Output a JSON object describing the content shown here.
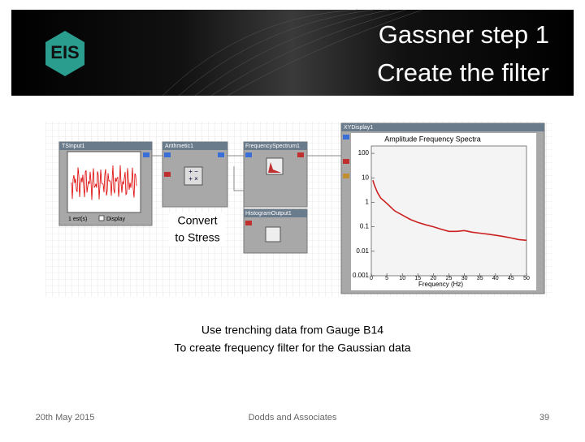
{
  "header": {
    "title_lines": [
      "Gassner step 1",
      "Create the filter"
    ]
  },
  "screenshot": {
    "modules": [
      {
        "label": "TSInput1"
      },
      {
        "label": "Arithmetic1"
      },
      {
        "label": "FrequencySpectrum1"
      },
      {
        "label": "HistogramOutput1"
      },
      {
        "label": "XYDisplay1"
      }
    ],
    "tsinput_status": "1 est(s)",
    "tsinput_checkbox": "Display",
    "arithmetic_symbols": "+ −\n+ ×",
    "convert_label": [
      "Convert",
      "to Stress"
    ],
    "spectrum": {
      "type": "line",
      "title": "Amplitude Frequency Spectra",
      "x_label": "Frequency (Hz)",
      "log_y": true,
      "color": "#cc1f1f",
      "xlim": [
        0,
        50
      ],
      "xticks": [
        0,
        5,
        10,
        15,
        20,
        25,
        30,
        35,
        40,
        45,
        50
      ],
      "ylim": [
        0.001,
        200
      ],
      "yticks": [
        100,
        10,
        1,
        0.1,
        0.01,
        0.001
      ],
      "x": [
        0.5,
        1,
        2,
        3,
        5,
        7.5,
        10,
        12.5,
        15,
        17.5,
        20,
        22.5,
        25,
        27.5,
        30,
        32.5,
        35,
        37.5,
        40,
        42.5,
        45,
        47.5,
        50
      ],
      "values": [
        8,
        5,
        2.5,
        1.5,
        0.9,
        0.45,
        0.3,
        0.2,
        0.15,
        0.12,
        0.1,
        0.08,
        0.065,
        0.065,
        0.07,
        0.06,
        0.055,
        0.05,
        0.045,
        0.04,
        0.035,
        0.03,
        0.028
      ]
    }
  },
  "captions": [
    "Use trenching data from Gauge B14",
    "To create frequency filter for the Gaussian data"
  ],
  "footer": {
    "date": "20th May 2015",
    "company": "Dodds and Associates",
    "page": "39"
  }
}
